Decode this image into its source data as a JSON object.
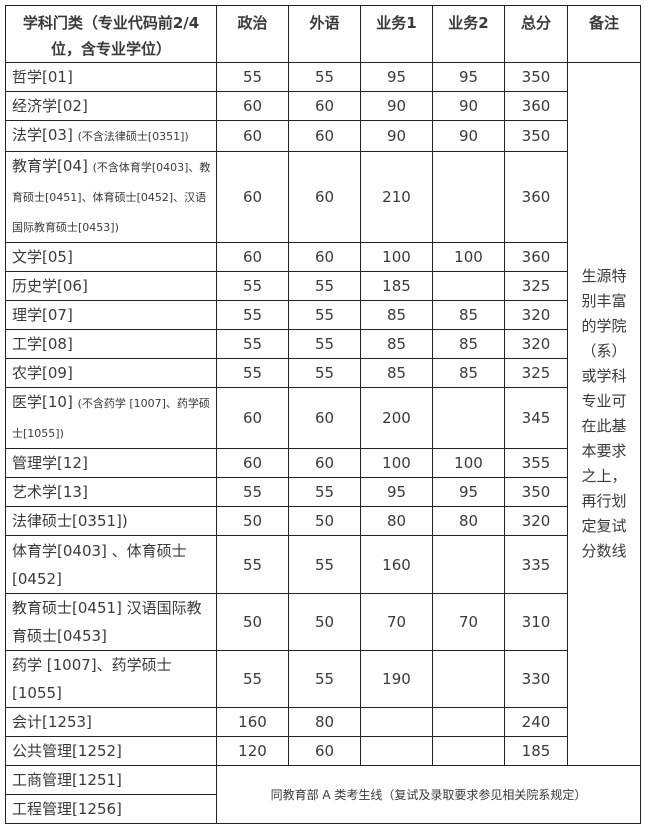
{
  "headers": [
    "学科门类（专业代码前2/4位，含专业学位）",
    "政治",
    "外语",
    "业务1",
    "业务2",
    "总分",
    "备注"
  ],
  "rows": [
    {
      "name": "哲学[01]",
      "note": "",
      "v": [
        "55",
        "55",
        "95",
        "95",
        "350"
      ]
    },
    {
      "name": "经济学[02]",
      "note": "",
      "v": [
        "60",
        "60",
        "90",
        "90",
        "360"
      ]
    },
    {
      "name": "法学[03] ",
      "note": "(不含法律硕士[0351])",
      "v": [
        "60",
        "60",
        "90",
        "90",
        "350"
      ]
    },
    {
      "name": "教育学[04] ",
      "note": "(不含体育学[0403]、教育硕士[0451]、体育硕士[0452]、汉语国际教育硕士[0453])",
      "v": [
        "60",
        "60",
        "210",
        "",
        "360"
      ]
    },
    {
      "name": "文学[05]",
      "note": "",
      "v": [
        "60",
        "60",
        "100",
        "100",
        "360"
      ]
    },
    {
      "name": "历史学[06]",
      "note": "",
      "v": [
        "55",
        "55",
        "185",
        "",
        "325"
      ]
    },
    {
      "name": "理学[07]",
      "note": "",
      "v": [
        "55",
        "55",
        "85",
        "85",
        "320"
      ]
    },
    {
      "name": "工学[08]",
      "note": "",
      "v": [
        "55",
        "55",
        "85",
        "85",
        "320"
      ]
    },
    {
      "name": "农学[09]",
      "note": "",
      "v": [
        "55",
        "55",
        "85",
        "85",
        "325"
      ]
    },
    {
      "name": "医学[10] ",
      "note": "(不含药学 [1007]、药学硕士[1055])",
      "v": [
        "60",
        "60",
        "200",
        "",
        "345"
      ]
    },
    {
      "name": "管理学[12]",
      "note": "",
      "v": [
        "60",
        "60",
        "100",
        "100",
        "355"
      ]
    },
    {
      "name": "艺术学[13]",
      "note": "",
      "v": [
        "55",
        "55",
        "95",
        "95",
        "350"
      ]
    },
    {
      "name": "法律硕士[0351])",
      "note": "",
      "v": [
        "50",
        "50",
        "80",
        "80",
        "320"
      ]
    },
    {
      "name": "体育学[0403] 、体育硕士[0452]",
      "note": "",
      "v": [
        "55",
        "55",
        "160",
        "",
        "335"
      ]
    },
    {
      "name": "教育硕士[0451] 汉语国际教育硕士[0453]",
      "note": "",
      "v": [
        "50",
        "50",
        "70",
        "70",
        "310"
      ]
    },
    {
      "name": "药学 [1007]、药学硕士[1055]",
      "note": "",
      "v": [
        "55",
        "55",
        "190",
        "",
        "330"
      ]
    },
    {
      "name": "会计[1253]",
      "note": "",
      "v": [
        "160",
        "80",
        "",
        "",
        "240"
      ]
    },
    {
      "name": "公共管理[1252]",
      "note": "",
      "v": [
        "120",
        "60",
        "",
        "",
        "185"
      ]
    }
  ],
  "remark": "生源特别丰富的学院（系）或学科专业可在此基本要求之上，再行划定复试分数线",
  "footer_rows": [
    "工商管理[1251]",
    "工程管理[1256]"
  ],
  "footer_note": "同教育部 A 类考生线（复试及录取要求参见相关院系规定）"
}
